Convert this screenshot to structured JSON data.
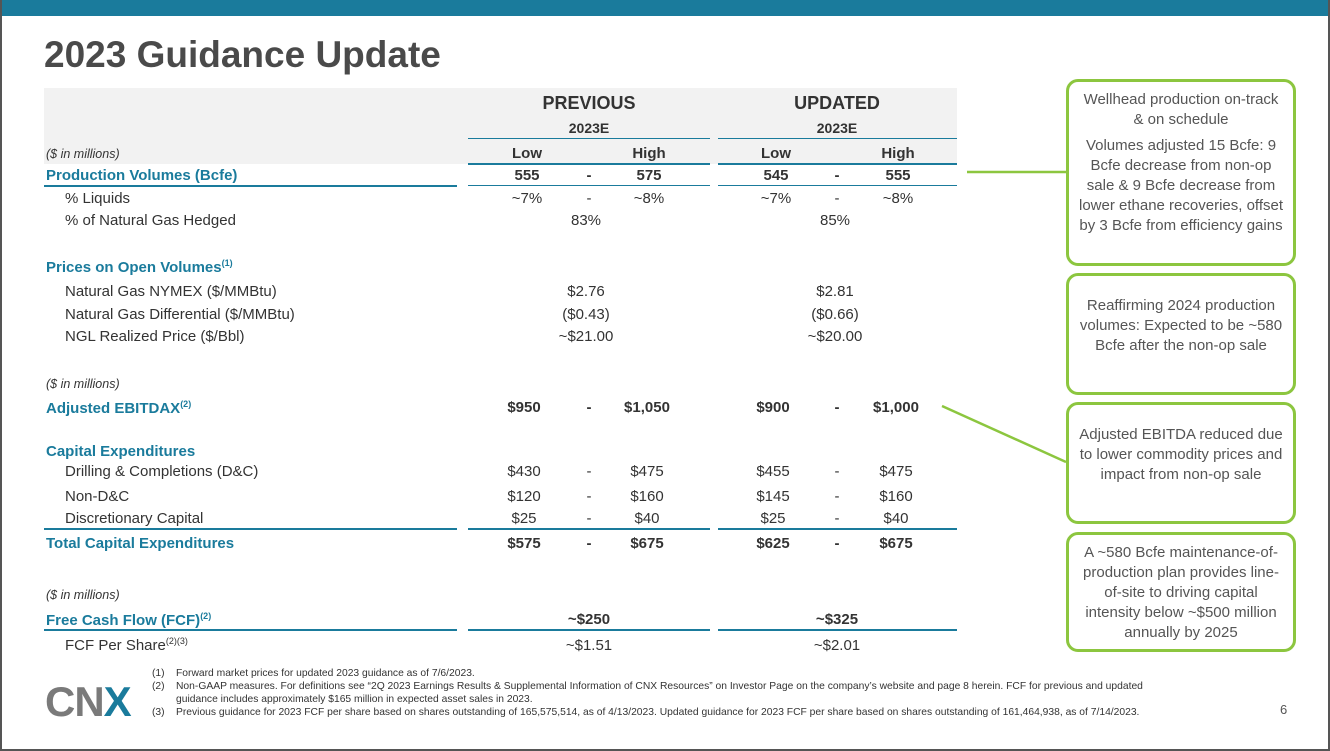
{
  "title": "2023 Guidance Update",
  "header": {
    "previous": "PREVIOUS",
    "updated": "UPDATED",
    "year_prev": "2023E",
    "year_upd": "2023E",
    "units": "($ in millions)",
    "low": "Low",
    "high": "High"
  },
  "rows": {
    "prod": {
      "label": "Production Volumes (Bcfe)",
      "pl": "555",
      "pd": "-",
      "ph": "575",
      "ul": "545",
      "ud": "-",
      "uh": "555"
    },
    "liquids": {
      "label": "% Liquids",
      "pl": "~7%",
      "pd": "-",
      "ph": "~8%",
      "ul": "~7%",
      "ud": "-",
      "uh": "~8%"
    },
    "hedged": {
      "label": "% of Natural Gas Hedged",
      "prev": "83%",
      "upd": "85%"
    },
    "prices_label": "Prices on Open Volumes",
    "prices_sup": "(1)",
    "nymex": {
      "label": "Natural Gas NYMEX ($/MMBtu)",
      "prev": "$2.76",
      "upd": "$2.81"
    },
    "diff": {
      "label": "Natural Gas Differential ($/MMBtu)",
      "prev": "($0.43)",
      "upd": "($0.66)"
    },
    "ngl": {
      "label": "NGL Realized Price ($/Bbl)",
      "prev": "~$21.00",
      "upd": "~$20.00"
    },
    "units2": "($ in millions)",
    "ebitdax": {
      "label": "Adjusted EBITDAX",
      "sup": "(2)",
      "pl": "$950",
      "pd": "-",
      "ph": "$1,050",
      "ul": "$900",
      "ud": "-",
      "uh": "$1,000"
    },
    "capex_label": "Capital Expenditures",
    "dc": {
      "label": "Drilling & Completions (D&C)",
      "pl": "$430",
      "pd": "-",
      "ph": "$475",
      "ul": "$455",
      "ud": "-",
      "uh": "$475"
    },
    "nondc": {
      "label": "Non-D&C",
      "pl": "$120",
      "pd": "-",
      "ph": "$160",
      "ul": "$145",
      "ud": "-",
      "uh": "$160"
    },
    "disc": {
      "label": "Discretionary Capital",
      "pl": "$25",
      "pd": "-",
      "ph": "$40",
      "ul": "$25",
      "ud": "-",
      "uh": "$40"
    },
    "total": {
      "label": "Total Capital Expenditures",
      "pl": "$575",
      "pd": "-",
      "ph": "$675",
      "ul": "$625",
      "ud": "-",
      "uh": "$675"
    },
    "units3": "($ in millions)",
    "fcf": {
      "label": "Free Cash Flow (FCF)",
      "sup": "(2)",
      "prev": "~$250",
      "upd": "~$325"
    },
    "fcfps": {
      "label": "FCF Per Share",
      "sup": "(2)(3)",
      "prev": "~$1.51",
      "upd": "~$2.01"
    }
  },
  "boxes": {
    "b1a": "Wellhead production on-track & on schedule",
    "b1b": "Volumes adjusted 15 Bcfe: 9 Bcfe decrease from non-op sale & 9 Bcfe decrease from lower ethane recoveries, offset by 3 Bcfe from efficiency gains",
    "b2": "Reaffirming 2024 production volumes: Expected to be ~580 Bcfe after the non-op sale",
    "b3": "Adjusted EBITDA reduced due to lower commodity prices and impact from non-op sale",
    "b4": "A ~580 Bcfe maintenance-of-production plan provides line-of-site to driving capital intensity below ~$500 million annually by 2025"
  },
  "footnotes": [
    {
      "n": "(1)",
      "text": "Forward market prices for updated 2023 guidance as of 7/6/2023."
    },
    {
      "n": "(2)",
      "text": "Non-GAAP measures. For definitions see “2Q 2023 Earnings Results & Supplemental Information of CNX Resources” on Investor Page on the company’s website and page 8 herein. FCF for previous and updated"
    },
    {
      "n": "",
      "text": "guidance includes approximately $165 million in expected asset sales in 2023."
    },
    {
      "n": "(3)",
      "text": "Previous guidance for 2023 FCF per share based on shares outstanding of 165,575,514, as of 4/13/2023. Updated guidance for 2023 FCF per share based on shares outstanding of 161,464,938, as of 7/14/2023."
    }
  ],
  "logo": {
    "cn": "CN",
    "x": "X"
  },
  "page_number": "6",
  "colors": {
    "accent": "#1a7b9c",
    "box_border": "#8cc63f",
    "title": "#4a4a4a"
  }
}
